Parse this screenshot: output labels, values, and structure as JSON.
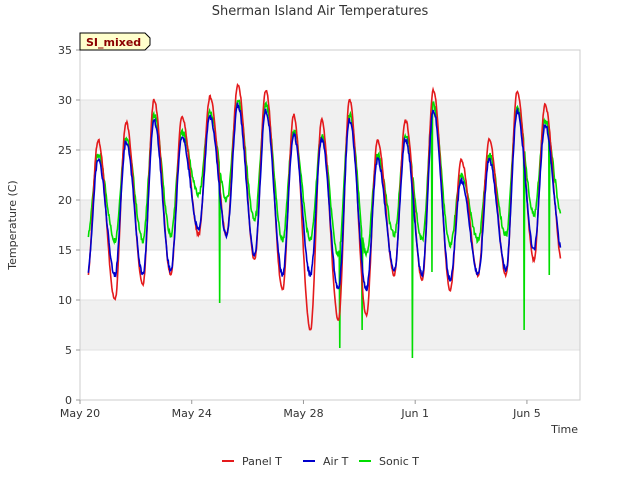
{
  "chart_data": {
    "type": "line",
    "title": "Sherman Island Air Temperatures",
    "xlabel": "Time",
    "ylabel": "Temperature (C)",
    "site_badge": "SI_mixed",
    "ylim": [
      0,
      35
    ],
    "yticks": [
      0,
      5,
      10,
      15,
      20,
      25,
      30,
      35
    ],
    "xlim_days": [
      0,
      18
    ],
    "xtick_labels": [
      "May 20",
      "May 24",
      "May 28",
      "Jun 1",
      "Jun 5"
    ],
    "xtick_days": [
      0,
      4,
      8,
      12,
      16
    ],
    "grid": "horizontal bands",
    "legend_placement": "bottom-center",
    "series": [
      {
        "name": "Panel T",
        "color": "#e41a1c",
        "daily_min": [
          12,
          10,
          11.5,
          12.5,
          16.5,
          16.5,
          14,
          11,
          7,
          8,
          8.5,
          12.5,
          12,
          11,
          12.5,
          12.5,
          14
        ],
        "daily_max": [
          26,
          27.8,
          30,
          28.3,
          30.3,
          31.5,
          31,
          28.5,
          28,
          30,
          26,
          28,
          31,
          24,
          26,
          30.8,
          29.5
        ]
      },
      {
        "name": "Air T",
        "color": "#0000cc",
        "daily_min": [
          12.5,
          12.5,
          12.5,
          13,
          17,
          16.5,
          14.5,
          12.5,
          12.5,
          11,
          11,
          13,
          12.5,
          12,
          12.5,
          13,
          15
        ]
      },
      {
        "name": "Sonic T",
        "color": "#00dd00",
        "spikes": [
          {
            "x": 5,
            "y": 9.7
          },
          {
            "x": 9.3,
            "y": 5.2
          },
          {
            "x": 10.1,
            "y": 7
          },
          {
            "x": 11.9,
            "y": 4.2
          },
          {
            "x": 12.6,
            "y": 12.8
          },
          {
            "x": 15.9,
            "y": 7
          },
          {
            "x": 16.8,
            "y": 12.5
          }
        ]
      }
    ]
  }
}
